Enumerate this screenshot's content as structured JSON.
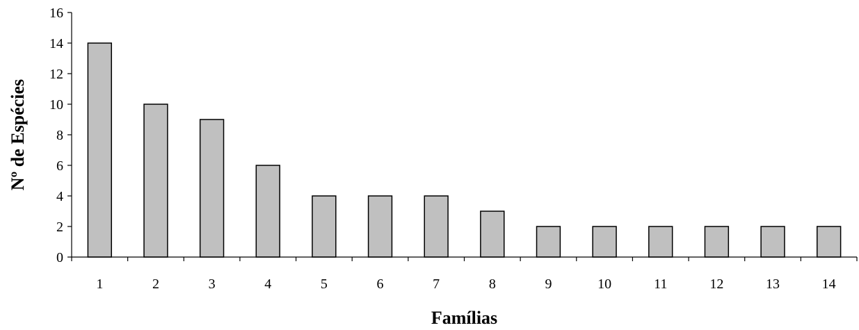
{
  "chart_data": {
    "type": "bar",
    "categories": [
      "1",
      "2",
      "3",
      "4",
      "5",
      "6",
      "7",
      "8",
      "9",
      "10",
      "11",
      "12",
      "13",
      "14"
    ],
    "values": [
      14,
      10,
      9,
      6,
      4,
      4,
      4,
      3,
      2,
      2,
      2,
      2,
      2,
      2
    ],
    "xlabel": "Famílias",
    "ylabel": "Nº de Espécies",
    "ylim": [
      0,
      16
    ],
    "yticks": [
      0,
      2,
      4,
      6,
      8,
      10,
      12,
      14,
      16
    ],
    "grid": false,
    "legend": "none",
    "bar_color": "#c0c0c0",
    "bar_edge_color": "#000000"
  }
}
